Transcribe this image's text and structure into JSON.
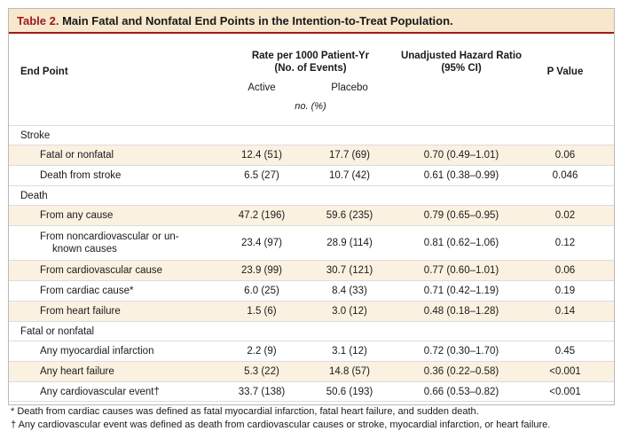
{
  "title": {
    "label": "Table 2.",
    "text": "Main Fatal and Nonfatal End Points in the Intention-to-Treat Population."
  },
  "columns": {
    "endpoint": "End Point",
    "rate_line1": "Rate per 1000 Patient-Yr",
    "rate_line2": "(No. of Events)",
    "hr_line1": "Unadjusted Hazard Ratio",
    "hr_line2": "(95% CI)",
    "pvalue": "P Value",
    "active": "Active",
    "placebo": "Placebo",
    "units": "no. (%)"
  },
  "rows": [
    {
      "type": "section",
      "label": "Stroke"
    },
    {
      "type": "item",
      "label": "Fatal or nonfatal",
      "active": "12.4 (51)",
      "placebo": "17.7 (69)",
      "hr": "0.70 (0.49–1.01)",
      "p": "0.06"
    },
    {
      "type": "item",
      "label": "Death from stroke",
      "active": "6.5 (27)",
      "placebo": "10.7 (42)",
      "hr": "0.61 (0.38–0.99)",
      "p": "0.046"
    },
    {
      "type": "section",
      "label": "Death"
    },
    {
      "type": "item",
      "label": "From any cause",
      "active": "47.2 (196)",
      "placebo": "59.6 (235)",
      "hr": "0.79 (0.65–0.95)",
      "p": "0.02"
    },
    {
      "type": "item",
      "label": "From noncardiovascular or un-",
      "label2": "known causes",
      "active": "23.4 (97)",
      "placebo": "28.9 (114)",
      "hr": "0.81 (0.62–1.06)",
      "p": "0.12"
    },
    {
      "type": "item",
      "label": "From cardiovascular cause",
      "active": "23.9 (99)",
      "placebo": "30.7 (121)",
      "hr": "0.77 (0.60–1.01)",
      "p": "0.06"
    },
    {
      "type": "item",
      "label": "From cardiac cause*",
      "active": "6.0 (25)",
      "placebo": "8.4 (33)",
      "hr": "0.71 (0.42–1.19)",
      "p": "0.19"
    },
    {
      "type": "item",
      "label": "From heart failure",
      "active": "1.5 (6)",
      "placebo": "3.0 (12)",
      "hr": "0.48 (0.18–1.28)",
      "p": "0.14"
    },
    {
      "type": "section",
      "label": "Fatal or nonfatal"
    },
    {
      "type": "item",
      "label": "Any myocardial infarction",
      "active": "2.2 (9)",
      "placebo": "3.1 (12)",
      "hr": "0.72 (0.30–1.70)",
      "p": "0.45"
    },
    {
      "type": "item",
      "label": "Any heart failure",
      "active": "5.3 (22)",
      "placebo": "14.8 (57)",
      "hr": "0.36 (0.22–0.58)",
      "p": "<0.001"
    },
    {
      "type": "item",
      "label": "Any cardiovascular event†",
      "active": "33.7 (138)",
      "placebo": "50.6 (193)",
      "hr": "0.66 (0.53–0.82)",
      "p": "<0.001"
    }
  ],
  "footnotes": [
    "* Death from cardiac causes was defined as fatal myocardial infarction, fatal heart failure, and sudden death.",
    "† Any cardiovascular event was defined as death from cardiovascular causes or stroke, myocardial infarction, or heart failure."
  ],
  "colors": {
    "title_background": "#f7e7cc",
    "title_accent": "#9b1b1b",
    "row_shade": "#fbf1e1"
  }
}
